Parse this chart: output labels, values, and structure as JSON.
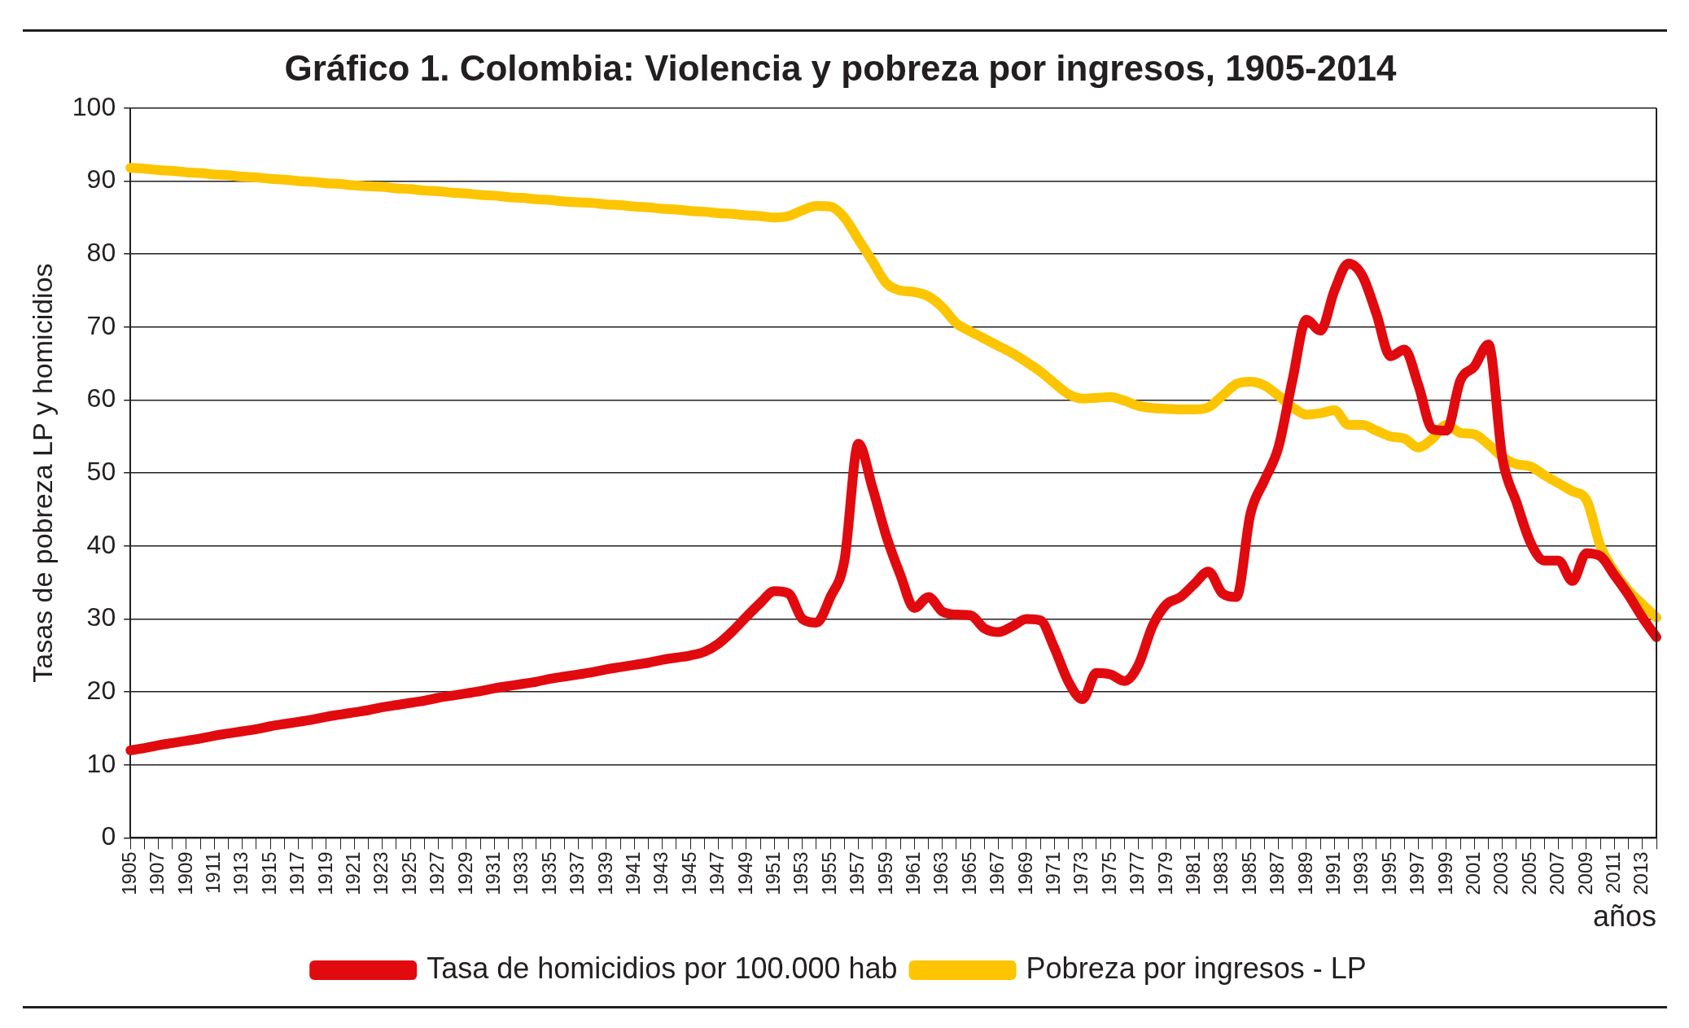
{
  "chart_data": {
    "type": "line",
    "title": "Gráfico 1. Colombia: Violencia y pobreza por ingresos, 1905-2014",
    "xlabel": "años",
    "ylabel": "Tasas de pobreza LP y homicidios",
    "categories": [
      "1905",
      null,
      "1907",
      null,
      "1909",
      null,
      "1911",
      null,
      "1913",
      null,
      "1915",
      null,
      "1917",
      null,
      "1919",
      null,
      "1921",
      null,
      "1923",
      null,
      "1925",
      null,
      "1927",
      null,
      "1929",
      null,
      "1931",
      null,
      "1933",
      null,
      "1935",
      null,
      "1937",
      null,
      "1939",
      null,
      "1941",
      null,
      "1943",
      null,
      "1945",
      null,
      "1947",
      null,
      "1949",
      null,
      "1951",
      null,
      "1953",
      null,
      "1955",
      null,
      "1957",
      null,
      "1959",
      null,
      "1961",
      null,
      "1963",
      null,
      "1965",
      null,
      "1967",
      null,
      "1969",
      null,
      "1971",
      null,
      "1973",
      null,
      "1975",
      null,
      "1977",
      null,
      "1979",
      null,
      "1981",
      null,
      "1983",
      null,
      "1985",
      null,
      "1987",
      null,
      "1989",
      null,
      "1991",
      null,
      "1993",
      null,
      "1995",
      null,
      "1997",
      null,
      "1999",
      null,
      "2001",
      null,
      "2003",
      null,
      "2005",
      null,
      "2007",
      null,
      "2009",
      null,
      "2011",
      null,
      "2013",
      null
    ],
    "series": [
      {
        "name": "Tasa de homicidios por 100.000 hab",
        "color": "#e10a0f",
        "values": [
          12.0,
          12.3,
          12.7,
          13.0,
          13.3,
          13.6,
          14.0,
          14.3,
          14.6,
          14.9,
          15.3,
          15.6,
          15.9,
          16.2,
          16.6,
          16.9,
          17.2,
          17.5,
          17.9,
          18.2,
          18.5,
          18.8,
          19.2,
          19.5,
          19.8,
          20.1,
          20.5,
          20.8,
          21.1,
          21.4,
          21.8,
          22.1,
          22.4,
          22.7,
          23.1,
          23.4,
          23.7,
          24.0,
          24.4,
          24.7,
          25.0,
          25.5,
          26.6,
          28.3,
          30.3,
          32.2,
          33.8,
          33.5,
          30,
          29.5,
          33,
          38,
          54,
          48,
          41.3,
          36,
          31.5,
          33,
          31,
          30.6,
          30.5,
          28.7,
          28.2,
          29,
          30,
          29.8,
          26,
          21.4,
          19,
          22.6,
          22.4,
          21.5,
          23.7,
          29,
          32,
          33,
          34.8,
          36.5,
          33.5,
          33,
          44.4,
          49,
          53.5,
          62.7,
          71,
          69.5,
          75,
          78.7,
          77,
          71.8,
          66,
          66.9,
          62,
          56,
          55.8,
          62.7,
          64.6,
          67.6,
          52,
          46,
          40.5,
          38,
          38,
          35.2,
          39,
          38.6,
          36,
          33.3,
          30.2,
          27.5
        ]
      },
      {
        "name": "Pobreza por ingresos - LP",
        "color": "#fcc500",
        "values": [
          91.8,
          91.7,
          91.5,
          91.4,
          91.2,
          91.1,
          90.9,
          90.8,
          90.6,
          90.5,
          90.3,
          90.2,
          90.0,
          89.9,
          89.7,
          89.6,
          89.4,
          89.3,
          89.2,
          89.0,
          88.9,
          88.7,
          88.6,
          88.4,
          88.3,
          88.1,
          88.0,
          87.8,
          87.7,
          87.5,
          87.4,
          87.2,
          87.1,
          87.0,
          86.8,
          86.7,
          86.5,
          86.4,
          86.2,
          86.1,
          85.9,
          85.8,
          85.6,
          85.5,
          85.3,
          85.2,
          85.0,
          85.2,
          86.0,
          86.6,
          86.5,
          85.0,
          82,
          79,
          76,
          75,
          74.8,
          74.2,
          72.7,
          70.5,
          69.4,
          68.4,
          67.4,
          66.4,
          65.2,
          63.9,
          62.3,
          60.8,
          60.2,
          60.3,
          60.4,
          59.9,
          59.2,
          58.9,
          58.8,
          58.7,
          58.7,
          59.0,
          60.6,
          62.2,
          62.5,
          62.0,
          60.6,
          59.0,
          58.0,
          58.2,
          58.6,
          56.6,
          56.6,
          55.8,
          55.0,
          54.7,
          53.5,
          54.7,
          56.6,
          55.5,
          55.3,
          53.9,
          52.2,
          51.2,
          50.9,
          49.7,
          48.6,
          47.5,
          46.3,
          40,
          36.5,
          33.9,
          32,
          30.2
        ]
      }
    ],
    "ylim": [
      0,
      100
    ],
    "yticks": [
      0,
      10,
      20,
      30,
      40,
      50,
      60,
      70,
      80,
      90,
      100
    ],
    "grid": "y",
    "legend": "bottom",
    "marker": "none",
    "line_style": "solid"
  }
}
